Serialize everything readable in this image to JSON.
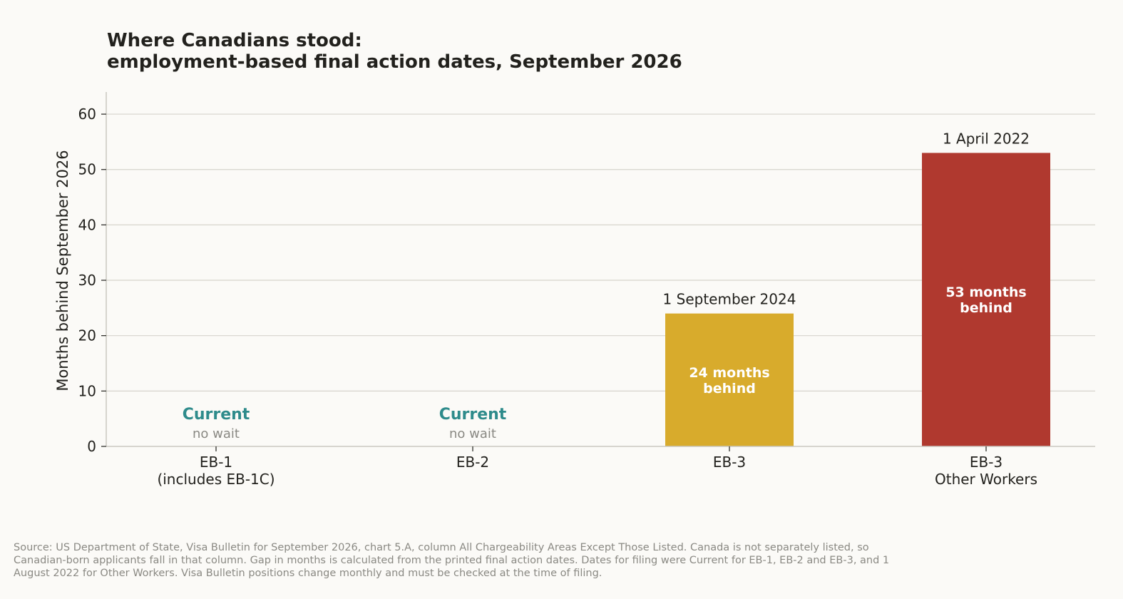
{
  "title_lines": [
    "Where Canadians stood:",
    "employment-based final action dates, September 2026"
  ],
  "source_note": "Source: US Department of State, Visa Bulletin for September 2026, chart 5.A, column All Chargeability Areas Except Those Listed. Canada is not separately listed, so Canadian-born applicants fall in that column. Gap in months is calculated from the printed final action dates. Dates for filing were Current for EB-1, EB-2 and EB-3, and 1 August 2022 for Other Workers. Visa Bulletin positions change monthly and must be checked at the time of filing.",
  "chart_data": {
    "type": "bar",
    "ylabel": "Months behind September 2026",
    "xlabel": "",
    "ylim": [
      0,
      64
    ],
    "yticks": [
      0,
      10,
      20,
      30,
      40,
      50,
      60
    ],
    "grid": true,
    "categories": [
      [
        "EB-1",
        "(includes EB-1C)"
      ],
      [
        "EB-2"
      ],
      [
        "EB-3"
      ],
      [
        "EB-3",
        "Other Workers"
      ]
    ],
    "values": [
      0,
      0,
      24,
      53
    ],
    "date_labels": [
      "",
      "",
      "1 September 2024",
      "1 April 2022"
    ],
    "inside_labels": [
      [],
      [],
      [
        "24 months",
        "behind"
      ],
      [
        "53 months",
        "behind"
      ]
    ],
    "current_labels": [
      {
        "main": "Current",
        "sub": "no wait"
      },
      {
        "main": "Current",
        "sub": "no wait"
      },
      null,
      null
    ],
    "colors": [
      "#2e8b8b",
      "#2e8b8b",
      "#d8ab2c",
      "#b0392f"
    ],
    "current_sub_color": "#8a8983",
    "axis_color": "#c9c8c1",
    "grid_color": "#d6d4cc",
    "text_color": "#22211d"
  }
}
